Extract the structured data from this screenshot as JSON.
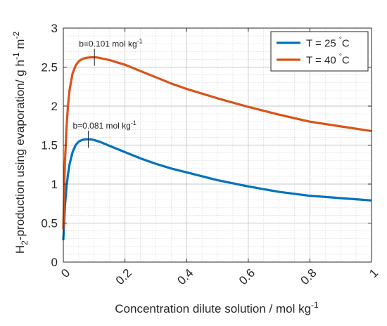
{
  "chart_data": {
    "type": "line",
    "xlabel_main": "Concentration dilute solution / mol kg",
    "xlabel_sup": "-1",
    "ylabel": {
      "p1": "H",
      "sub": "2",
      "p2": "-production using evaporation/ g h",
      "sup1": "-1",
      "p3": " m",
      "sup2": "-2"
    },
    "xlim": [
      0,
      1
    ],
    "ylim": [
      0,
      3
    ],
    "xticks": [
      "0",
      "0.2",
      "0.4",
      "0.6",
      "0.8",
      "1"
    ],
    "yticks": [
      "0",
      "0.5",
      "1",
      "1.5",
      "2",
      "2.5",
      "3"
    ],
    "grid": true,
    "minor_grid": true,
    "legend_position": "top-right",
    "series": [
      {
        "name": "T = 25 °C",
        "legend_main": "T = 25",
        "legend_unit": "C",
        "color": "#0072BD",
        "peak": {
          "x": 0.081,
          "y": 1.575
        },
        "x": [
          0.0,
          0.002,
          0.005,
          0.01,
          0.015,
          0.02,
          0.03,
          0.04,
          0.05,
          0.06,
          0.07,
          0.081,
          0.09,
          0.1,
          0.12,
          0.15,
          0.2,
          0.25,
          0.3,
          0.35,
          0.4,
          0.5,
          0.6,
          0.7,
          0.8,
          0.9,
          1.0
        ],
        "y": [
          0.28,
          0.45,
          0.7,
          0.95,
          1.12,
          1.25,
          1.41,
          1.5,
          1.545,
          1.565,
          1.573,
          1.575,
          1.573,
          1.565,
          1.54,
          1.49,
          1.41,
          1.33,
          1.26,
          1.2,
          1.15,
          1.05,
          0.97,
          0.9,
          0.85,
          0.82,
          0.79
        ]
      },
      {
        "name": "T = 40 °C",
        "legend_main": "T = 40",
        "legend_unit": "C",
        "color": "#D95319",
        "peak": {
          "x": 0.101,
          "y": 2.625
        },
        "x": [
          0.0,
          0.002,
          0.005,
          0.01,
          0.015,
          0.02,
          0.03,
          0.04,
          0.05,
          0.06,
          0.07,
          0.08,
          0.09,
          0.101,
          0.11,
          0.12,
          0.15,
          0.2,
          0.25,
          0.3,
          0.35,
          0.4,
          0.5,
          0.6,
          0.7,
          0.8,
          0.9,
          1.0
        ],
        "y": [
          0.42,
          0.8,
          1.25,
          1.7,
          2.0,
          2.2,
          2.42,
          2.52,
          2.575,
          2.6,
          2.615,
          2.622,
          2.625,
          2.625,
          2.623,
          2.615,
          2.59,
          2.53,
          2.45,
          2.37,
          2.29,
          2.22,
          2.1,
          1.99,
          1.89,
          1.8,
          1.74,
          1.68
        ]
      }
    ],
    "annotations": [
      {
        "text_main": "b=0.081 mol kg",
        "text_sup": "-1",
        "x": 0.081,
        "y": 1.575,
        "series": 0
      },
      {
        "text_main": "b=0.101 mol kg",
        "text_sup": "-1",
        "x": 0.101,
        "y": 2.625,
        "series": 1
      }
    ]
  }
}
